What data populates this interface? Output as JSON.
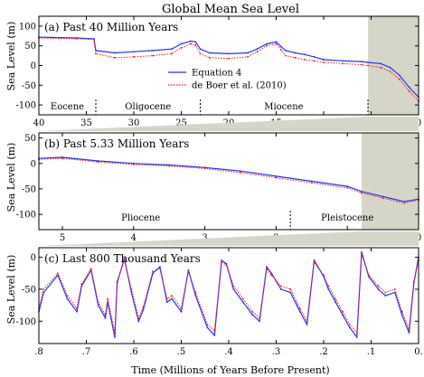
{
  "title": "Global Mean Sea Level",
  "xlabel": "Time (Millions of Years Before Present)",
  "ylabel": "Sea Level (m)",
  "legend": [
    {
      "label": "Equation 4",
      "color": "#2233ff",
      "style": "solid"
    },
    {
      "label": "de Boer et al. (2010)",
      "color": "#ff1111",
      "style": "dotted"
    }
  ],
  "colors": {
    "equation4": "#2233ff",
    "deboer": "#ff1111",
    "shade": "#d6d6c8"
  },
  "chart_data": [
    {
      "type": "line",
      "title": "(a)  Past 40 Million Years",
      "xlim": [
        40,
        0
      ],
      "ylim": [
        -125,
        125
      ],
      "xticks": [
        40,
        35,
        30,
        25,
        20,
        15,
        10,
        5,
        0
      ],
      "xtick_labels": [
        "40",
        "35",
        "30",
        "25",
        "20",
        "15",
        "10",
        "5",
        "0"
      ],
      "yticks": [
        100,
        50,
        0,
        -50,
        -100
      ],
      "ytick_labels": [
        "100",
        "50",
        "0",
        "-50",
        "-100"
      ],
      "shaded_range": [
        5.33,
        0
      ],
      "boundaries": [
        34,
        23,
        5.33
      ],
      "eras": [
        {
          "label": "Eocene",
          "x": 37
        },
        {
          "label": "Oligocene",
          "x": 28.5
        },
        {
          "label": "Miocene",
          "x": 14.2
        }
      ],
      "series": [
        {
          "name": "Equation 4",
          "x": [
            40,
            36,
            34.2,
            34,
            32,
            30,
            28,
            26,
            25,
            24,
            23.5,
            23,
            22,
            20,
            18,
            17,
            16,
            15,
            14.5,
            14,
            13,
            12,
            11,
            10,
            8,
            6,
            5.33,
            4,
            3,
            2,
            1,
            0
          ],
          "values": [
            72,
            70,
            68,
            38,
            32,
            35,
            38,
            42,
            55,
            62,
            60,
            42,
            32,
            30,
            32,
            42,
            55,
            60,
            48,
            38,
            32,
            28,
            22,
            15,
            12,
            10,
            8,
            5,
            -5,
            -25,
            -55,
            -80
          ]
        },
        {
          "name": "de Boer et al. (2010)",
          "x": [
            40,
            36,
            34.2,
            34,
            32,
            30,
            28,
            26,
            25,
            24,
            23.5,
            23,
            22,
            20,
            18,
            17,
            16,
            15,
            14.5,
            14,
            13,
            12,
            11,
            10,
            8,
            6,
            5.33,
            4,
            3,
            2,
            1,
            0
          ],
          "values": [
            70,
            68,
            66,
            30,
            20,
            22,
            25,
            30,
            45,
            55,
            52,
            30,
            20,
            18,
            22,
            35,
            50,
            55,
            40,
            25,
            20,
            15,
            12,
            8,
            5,
            2,
            0,
            -5,
            -15,
            -35,
            -65,
            -90
          ]
        }
      ]
    },
    {
      "type": "line",
      "title": "(b)  Past 5.33 Million Years",
      "xlim": [
        5.33,
        0
      ],
      "ylim": [
        -130,
        60
      ],
      "xticks": [
        5,
        4,
        3,
        2,
        1,
        0
      ],
      "xtick_labels": [
        "5",
        "4",
        "3",
        "2",
        "1",
        "0"
      ],
      "yticks": [
        50,
        0,
        -50,
        -100
      ],
      "ytick_labels": [
        "50",
        "0",
        "-50",
        "-100"
      ],
      "shaded_range": [
        0.8,
        0
      ],
      "boundaries": [
        1.8
      ],
      "eras": [
        {
          "label": "Pliocene",
          "x": 3.9
        },
        {
          "label": "Pleistocene",
          "x": 1.0
        }
      ],
      "series": [
        {
          "name": "Equation 4",
          "x": [
            5.33,
            5,
            4.5,
            4,
            3.5,
            3,
            2.5,
            2,
            1.5,
            1,
            0.8,
            0.5,
            0.2,
            0
          ],
          "values": [
            10,
            12,
            5,
            0,
            -3,
            -8,
            -15,
            -25,
            -35,
            -45,
            -55,
            -65,
            -75,
            -70
          ]
        },
        {
          "name": "de Boer et al. (2010)",
          "x": [
            5.33,
            5,
            4.5,
            4,
            3.5,
            3,
            2.5,
            2,
            1.5,
            1,
            0.8,
            0.5,
            0.2,
            0
          ],
          "values": [
            8,
            10,
            3,
            -2,
            -5,
            -10,
            -18,
            -28,
            -38,
            -48,
            -58,
            -68,
            -78,
            -72
          ]
        }
      ]
    },
    {
      "type": "line",
      "title": "(c)  Last 800 Thousand Years",
      "xlim": [
        0.8,
        0
      ],
      "ylim": [
        -135,
        15
      ],
      "xticks": [
        0.8,
        0.7,
        0.6,
        0.5,
        0.4,
        0.3,
        0.2,
        0.1,
        0
      ],
      "xtick_labels": [
        ".8",
        ".7",
        ".6",
        ".5",
        ".4",
        ".3",
        ".2",
        ".1",
        "0."
      ],
      "yticks": [
        0,
        -50,
        -100
      ],
      "ytick_labels": [
        "0",
        "-50",
        "-100"
      ],
      "series": [
        {
          "name": "Equation 4",
          "x": [
            0.8,
            0.79,
            0.76,
            0.74,
            0.72,
            0.71,
            0.69,
            0.675,
            0.66,
            0.655,
            0.64,
            0.635,
            0.62,
            0.605,
            0.59,
            0.58,
            0.56,
            0.545,
            0.53,
            0.52,
            0.5,
            0.485,
            0.47,
            0.445,
            0.43,
            0.415,
            0.405,
            0.39,
            0.37,
            0.35,
            0.335,
            0.32,
            0.31,
            0.29,
            0.27,
            0.25,
            0.235,
            0.22,
            0.2,
            0.19,
            0.175,
            0.16,
            0.145,
            0.13,
            0.12,
            0.105,
            0.085,
            0.07,
            0.05,
            0.035,
            0.02,
            0.01,
            0
          ],
          "values": [
            -85,
            -55,
            -28,
            -65,
            -85,
            -45,
            -20,
            -75,
            -95,
            -70,
            -125,
            -40,
            -2,
            -55,
            -100,
            -82,
            -25,
            -15,
            -70,
            -65,
            -85,
            -20,
            -60,
            -110,
            -122,
            -5,
            -10,
            -50,
            -70,
            -90,
            -100,
            -15,
            -25,
            -50,
            -55,
            -85,
            -105,
            -5,
            -30,
            -50,
            -70,
            -90,
            -110,
            -125,
            8,
            -30,
            -50,
            -60,
            -55,
            -90,
            -118,
            -40,
            0
          ]
        },
        {
          "name": "de Boer et al. (2010)",
          "x": [
            0.8,
            0.79,
            0.76,
            0.74,
            0.72,
            0.71,
            0.69,
            0.675,
            0.66,
            0.655,
            0.64,
            0.635,
            0.62,
            0.605,
            0.59,
            0.58,
            0.56,
            0.545,
            0.53,
            0.52,
            0.5,
            0.485,
            0.47,
            0.445,
            0.43,
            0.415,
            0.405,
            0.39,
            0.37,
            0.35,
            0.335,
            0.32,
            0.31,
            0.29,
            0.27,
            0.25,
            0.235,
            0.22,
            0.2,
            0.19,
            0.175,
            0.16,
            0.145,
            0.13,
            0.12,
            0.105,
            0.085,
            0.07,
            0.05,
            0.035,
            0.02,
            0.01,
            0
          ],
          "values": [
            -80,
            -50,
            -25,
            -60,
            -80,
            -42,
            -18,
            -70,
            -90,
            -65,
            -118,
            -38,
            -5,
            -50,
            -95,
            -78,
            -22,
            -18,
            -65,
            -60,
            -80,
            -22,
            -55,
            -105,
            -115,
            -8,
            -12,
            -45,
            -65,
            -85,
            -95,
            -18,
            -28,
            -45,
            -50,
            -80,
            -100,
            -8,
            -28,
            -45,
            -65,
            -85,
            -105,
            -118,
            5,
            -28,
            -45,
            -55,
            -50,
            -85,
            -112,
            -38,
            -5
          ]
        }
      ]
    }
  ]
}
